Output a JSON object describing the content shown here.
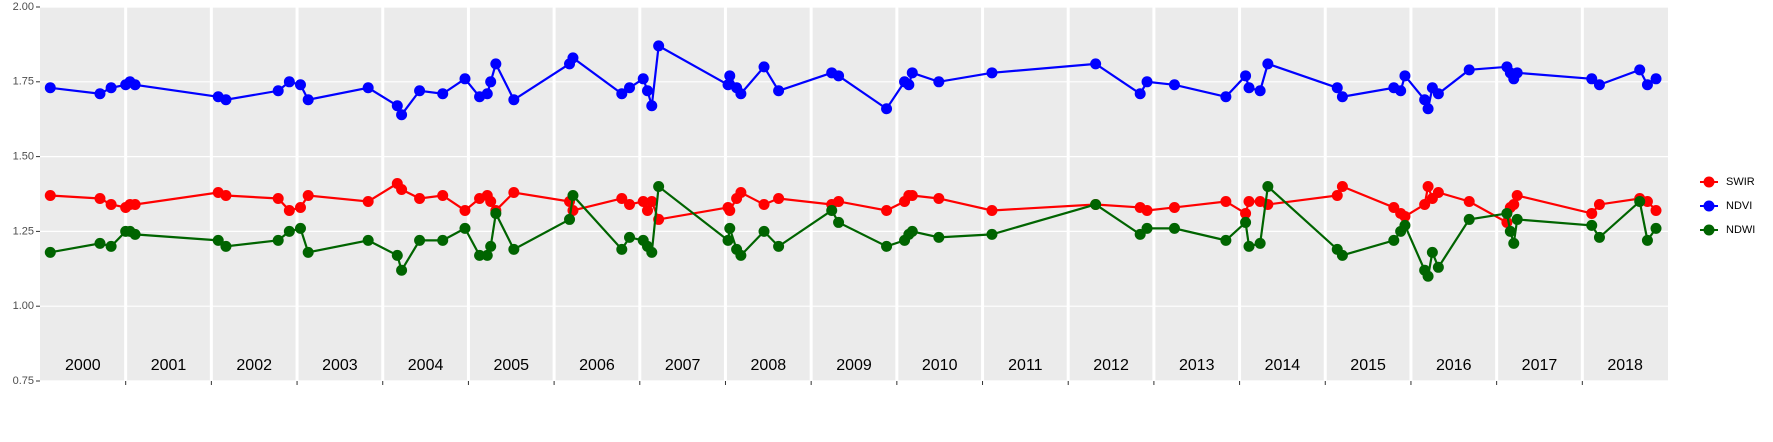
{
  "chart_data": {
    "type": "line",
    "x": [
      2000.12,
      2000.7,
      2000.83,
      2001.0,
      2001.05,
      2001.11,
      2002.08,
      2002.17,
      2002.78,
      2002.91,
      2003.04,
      2003.13,
      2003.83,
      2004.17,
      2004.22,
      2004.43,
      2004.7,
      2004.96,
      2005.13,
      2005.22,
      2005.26,
      2005.32,
      2005.53,
      2006.18,
      2006.22,
      2006.79,
      2006.88,
      2007.04,
      2007.09,
      2007.14,
      2007.22,
      2008.03,
      2008.05,
      2008.13,
      2008.18,
      2008.45,
      2008.62,
      2009.24,
      2009.32,
      2009.88,
      2010.09,
      2010.14,
      2010.18,
      2010.49,
      2011.11,
      2012.32,
      2012.84,
      2012.92,
      2013.24,
      2013.84,
      2014.07,
      2014.11,
      2014.24,
      2014.33,
      2015.14,
      2015.2,
      2015.8,
      2015.88,
      2015.93,
      2016.16,
      2016.2,
      2016.25,
      2016.32,
      2016.68,
      2017.12,
      2017.16,
      2017.2,
      2017.24,
      2018.11,
      2018.2,
      2018.67,
      2018.76,
      2018.86
    ],
    "series": [
      {
        "name": "SWIR",
        "color": "#ff0000",
        "values": [
          1.37,
          1.36,
          1.34,
          1.33,
          1.34,
          1.34,
          1.38,
          1.37,
          1.36,
          1.32,
          1.33,
          1.37,
          1.35,
          1.41,
          1.39,
          1.36,
          1.37,
          1.32,
          1.36,
          1.37,
          1.35,
          1.32,
          1.38,
          1.35,
          1.32,
          1.36,
          1.34,
          1.35,
          1.32,
          1.35,
          1.29,
          1.33,
          1.32,
          1.36,
          1.38,
          1.34,
          1.36,
          1.34,
          1.35,
          1.32,
          1.35,
          1.37,
          1.37,
          1.36,
          1.32,
          1.34,
          1.33,
          1.32,
          1.33,
          1.35,
          1.31,
          1.35,
          1.35,
          1.34,
          1.37,
          1.4,
          1.33,
          1.31,
          1.3,
          1.34,
          1.4,
          1.36,
          1.38,
          1.35,
          1.28,
          1.33,
          1.34,
          1.37,
          1.31,
          1.34,
          1.36,
          1.35,
          1.32
        ]
      },
      {
        "name": "NDVI",
        "color": "#0000ff",
        "values": [
          1.73,
          1.71,
          1.73,
          1.74,
          1.75,
          1.74,
          1.7,
          1.69,
          1.72,
          1.75,
          1.74,
          1.69,
          1.73,
          1.67,
          1.64,
          1.72,
          1.71,
          1.76,
          1.7,
          1.71,
          1.75,
          1.81,
          1.69,
          1.81,
          1.83,
          1.71,
          1.73,
          1.76,
          1.72,
          1.67,
          1.87,
          1.74,
          1.77,
          1.73,
          1.71,
          1.8,
          1.72,
          1.78,
          1.77,
          1.66,
          1.75,
          1.74,
          1.78,
          1.75,
          1.78,
          1.81,
          1.71,
          1.75,
          1.74,
          1.7,
          1.77,
          1.73,
          1.72,
          1.81,
          1.73,
          1.7,
          1.73,
          1.72,
          1.77,
          1.69,
          1.66,
          1.73,
          1.71,
          1.79,
          1.8,
          1.78,
          1.76,
          1.78,
          1.76,
          1.74,
          1.79,
          1.74,
          1.76
        ]
      },
      {
        "name": "NDWI",
        "color": "#006400",
        "values": [
          1.18,
          1.21,
          1.2,
          1.25,
          1.25,
          1.24,
          1.22,
          1.2,
          1.22,
          1.25,
          1.26,
          1.18,
          1.22,
          1.17,
          1.12,
          1.22,
          1.22,
          1.26,
          1.17,
          1.17,
          1.2,
          1.31,
          1.19,
          1.29,
          1.37,
          1.19,
          1.23,
          1.22,
          1.2,
          1.18,
          1.4,
          1.22,
          1.26,
          1.19,
          1.17,
          1.25,
          1.2,
          1.32,
          1.28,
          1.2,
          1.22,
          1.24,
          1.25,
          1.23,
          1.24,
          1.34,
          1.24,
          1.26,
          1.26,
          1.22,
          1.28,
          1.2,
          1.21,
          1.4,
          1.19,
          1.17,
          1.22,
          1.25,
          1.27,
          1.12,
          1.1,
          1.18,
          1.13,
          1.29,
          1.31,
          1.25,
          1.21,
          1.29,
          1.27,
          1.23,
          1.35,
          1.22,
          1.26
        ]
      }
    ],
    "xlim": [
      2000,
      2019
    ],
    "xticks": [
      {
        "value": 2000.5,
        "label": "2000"
      },
      {
        "value": 2001.5,
        "label": "2001"
      },
      {
        "value": 2002.5,
        "label": "2002"
      },
      {
        "value": 2003.5,
        "label": "2003"
      },
      {
        "value": 2004.5,
        "label": "2004"
      },
      {
        "value": 2005.5,
        "label": "2005"
      },
      {
        "value": 2006.5,
        "label": "2006"
      },
      {
        "value": 2007.5,
        "label": "2007"
      },
      {
        "value": 2008.5,
        "label": "2008"
      },
      {
        "value": 2009.5,
        "label": "2009"
      },
      {
        "value": 2010.5,
        "label": "2010"
      },
      {
        "value": 2011.5,
        "label": "2011"
      },
      {
        "value": 2012.5,
        "label": "2012"
      },
      {
        "value": 2013.5,
        "label": "2013"
      },
      {
        "value": 2014.5,
        "label": "2014"
      },
      {
        "value": 2015.5,
        "label": "2015"
      },
      {
        "value": 2016.5,
        "label": "2016"
      },
      {
        "value": 2017.5,
        "label": "2017"
      },
      {
        "value": 2018.5,
        "label": "2018"
      }
    ],
    "xbreaks": [
      2001,
      2002,
      2003,
      2004,
      2005,
      2006,
      2007,
      2008,
      2009,
      2010,
      2011,
      2012,
      2013,
      2014,
      2015,
      2016,
      2017,
      2018
    ],
    "ylim": [
      0.75,
      2.0
    ],
    "yticks": [
      0.75,
      {
        "value": 1,
        "label": "1.00"
      },
      1.25,
      {
        "value": 1.5,
        "label": "1.50"
      },
      1.75,
      {
        "value": 2,
        "label": "2.00"
      }
    ],
    "grid": true
  }
}
